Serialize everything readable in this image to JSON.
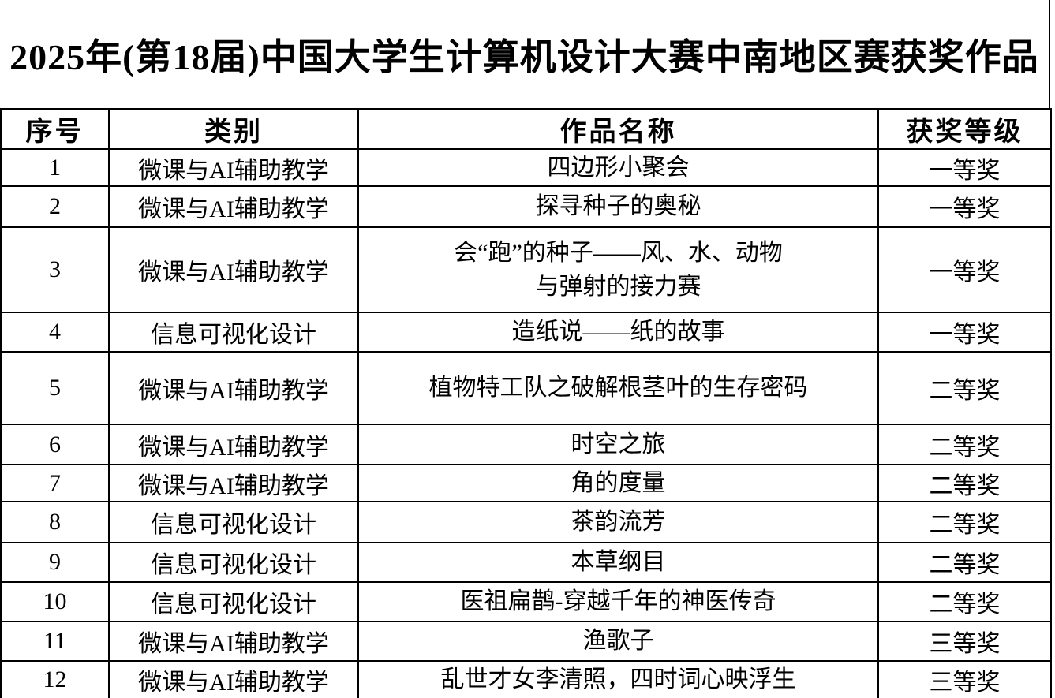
{
  "title": "2025年(第18届)中国大学生计算机设计大赛中南地区赛获奖作品",
  "colors": {
    "border": "#000000",
    "text": "#000000",
    "background": "#ffffff"
  },
  "table": {
    "headers": [
      "序号",
      "类别",
      "作品名称",
      "获奖等级"
    ],
    "rows": [
      {
        "no": "1",
        "category": "微课与AI辅助教学",
        "name": "四边形小聚会",
        "award": "一等奖"
      },
      {
        "no": "2",
        "category": "微课与AI辅助教学",
        "name": "探寻种子的奥秘",
        "award": "一等奖"
      },
      {
        "no": "3",
        "category": "微课与AI辅助教学",
        "name": "会“跑”的种子——风、水、动物\n与弹射的接力赛",
        "award": "一等奖"
      },
      {
        "no": "4",
        "category": "信息可视化设计",
        "name": "造纸说——纸的故事",
        "award": "一等奖"
      },
      {
        "no": "5",
        "category": "微课与AI辅助教学",
        "name": "植物特工队之破解根茎叶的生存密码",
        "award": "二等奖"
      },
      {
        "no": "6",
        "category": "微课与AI辅助教学",
        "name": "时空之旅",
        "award": "二等奖"
      },
      {
        "no": "7",
        "category": "微课与AI辅助教学",
        "name": "角的度量",
        "award": "二等奖"
      },
      {
        "no": "8",
        "category": "信息可视化设计",
        "name": "茶韵流芳",
        "award": "二等奖"
      },
      {
        "no": "9",
        "category": "信息可视化设计",
        "name": "本草纲目",
        "award": "二等奖"
      },
      {
        "no": "10",
        "category": "信息可视化设计",
        "name": "医祖扁鹊-穿越千年的神医传奇",
        "award": "二等奖"
      },
      {
        "no": "11",
        "category": "微课与AI辅助教学",
        "name": "渔歌子",
        "award": "三等奖"
      },
      {
        "no": "12",
        "category": "微课与AI辅助教学",
        "name": "乱世才女李清照，四时词心映浮生",
        "award": "三等奖"
      }
    ]
  }
}
